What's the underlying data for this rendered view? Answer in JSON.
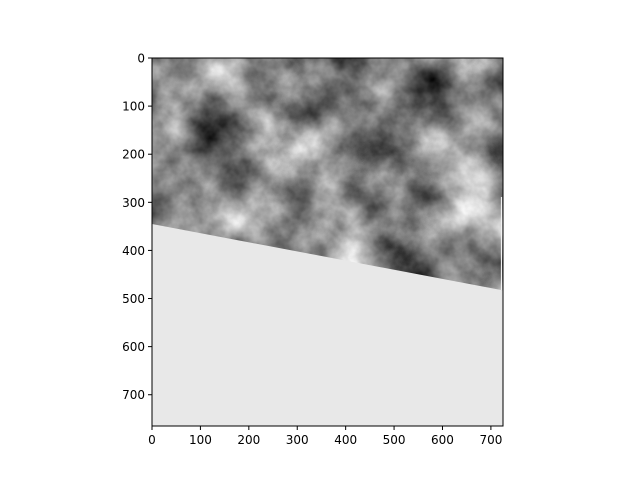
{
  "chart_data": {
    "type": "heatmap",
    "title": "",
    "xlabel": "",
    "ylabel": "",
    "xlim": [
      0,
      725
    ],
    "ylim": [
      765,
      0
    ],
    "x_ticks": [
      0,
      100,
      200,
      300,
      400,
      500,
      600,
      700
    ],
    "y_ticks": [
      0,
      100,
      200,
      300,
      400,
      500,
      600,
      700
    ],
    "x_tick_labels": [
      "0",
      "100",
      "200",
      "300",
      "400",
      "500",
      "600",
      "700"
    ],
    "y_tick_labels": [
      "0",
      "100",
      "200",
      "300",
      "400",
      "500",
      "600",
      "700"
    ],
    "colormap": "gray",
    "image_content": "grayscale cloud-like texture",
    "fill_region": {
      "boundary": [
        [
          0,
          345
        ],
        [
          725,
          483
        ]
      ],
      "color": "#e8e8e8"
    },
    "grid": false
  }
}
